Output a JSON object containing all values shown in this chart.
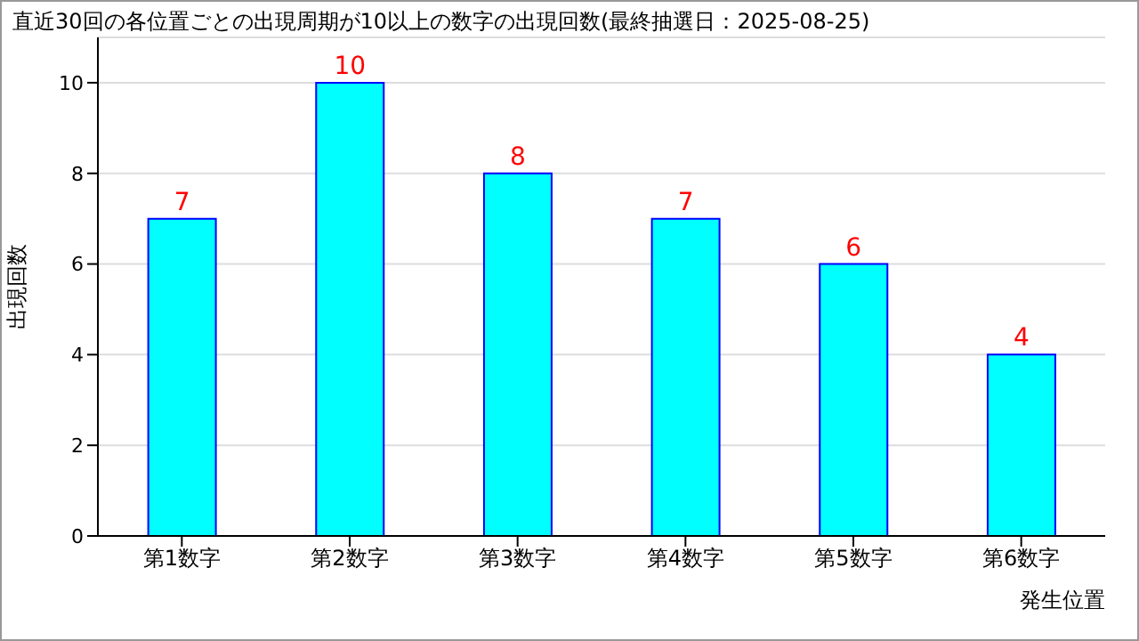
{
  "chart_data": {
    "type": "bar",
    "title": "直近30回の各位置ごとの出現周期が10以上の数字の出現回数(最終抽選日：2025-08-25)",
    "xlabel": "発生位置",
    "ylabel": "出現回数",
    "categories": [
      "第1数字",
      "第2数字",
      "第3数字",
      "第4数字",
      "第5数字",
      "第6数字"
    ],
    "values": [
      7,
      10,
      8,
      7,
      6,
      4
    ],
    "color": "#00ffff",
    "ylim": [
      0,
      11
    ],
    "yticks": [
      0,
      2,
      4,
      6,
      8,
      10
    ],
    "grid": "y",
    "data_labels": true
  }
}
